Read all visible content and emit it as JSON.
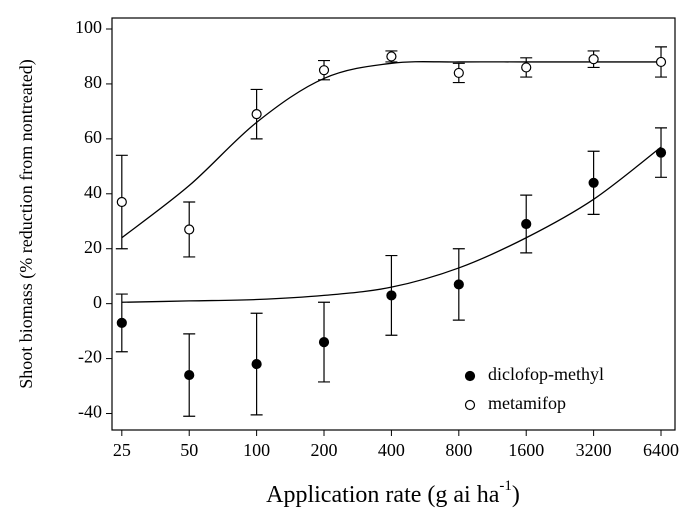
{
  "chart_data": {
    "type": "scatter",
    "xlabel": "Application rate (g ai ha",
    "xlabel_superscript": "-1",
    "xlabel_end": ")",
    "ylabel": "Shoot biomass (% reduction from nontreated)",
    "x": [
      25,
      50,
      100,
      200,
      400,
      800,
      1600,
      3200,
      6400
    ],
    "log_x": true,
    "log_base": 2,
    "xlim": [
      22.6,
      7390
    ],
    "xticks": [
      25,
      50,
      100,
      200,
      400,
      800,
      1600,
      3200,
      6400
    ],
    "ylim": [
      -46,
      104
    ],
    "yticks": [
      -40,
      -20,
      0,
      20,
      40,
      60,
      80,
      100
    ],
    "grid": false,
    "legend": "lower right",
    "series": [
      {
        "name": "diclofop-methyl",
        "color": "#000000",
        "filled": true,
        "values": [
          -7,
          -26,
          -22,
          -14,
          3,
          7,
          29,
          44,
          55
        ],
        "errors": [
          10.5,
          15,
          18.5,
          14.5,
          14.5,
          13,
          10.5,
          11.5,
          9
        ],
        "fit": [
          0.5,
          1,
          1.5,
          3,
          6,
          13,
          24,
          38,
          57
        ]
      },
      {
        "name": "metamifop",
        "color": "#000000",
        "filled": false,
        "values": [
          37,
          27,
          69,
          85,
          90,
          84,
          86,
          89,
          88
        ],
        "errors": [
          17,
          10,
          9,
          3.5,
          2,
          3.5,
          3.5,
          3,
          5.5
        ],
        "fit": [
          24,
          43,
          66,
          82,
          87.5,
          88,
          88,
          88,
          88
        ]
      }
    ]
  }
}
